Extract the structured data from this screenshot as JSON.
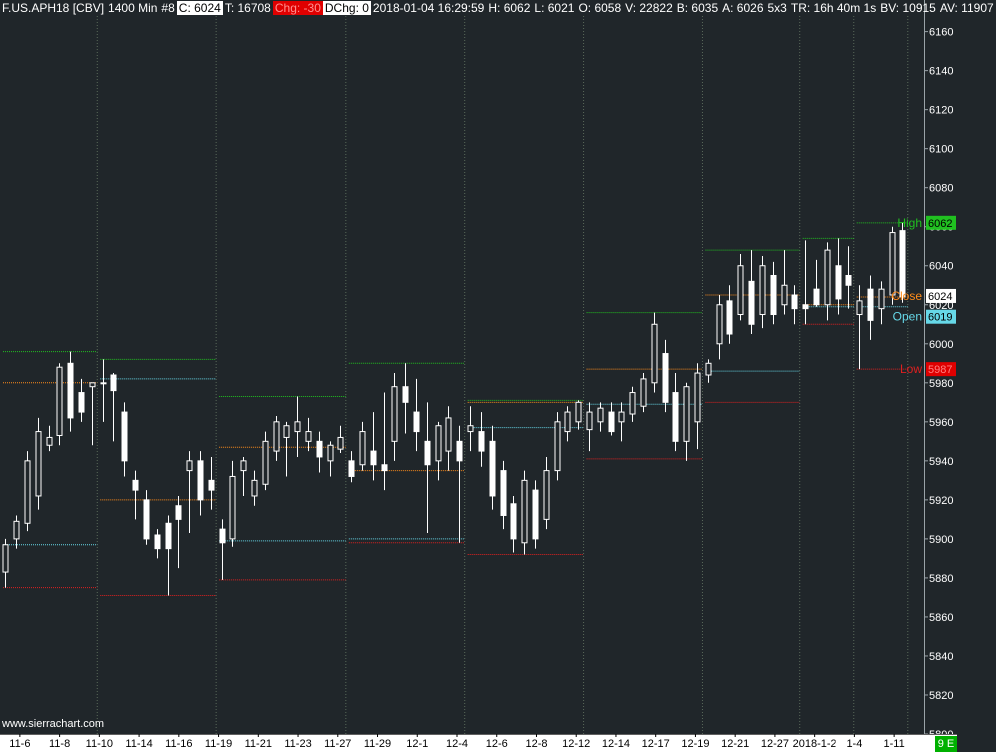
{
  "header": {
    "symbol": "F.US.APH18 [CBV]",
    "timeframe": "1400 Min",
    "chart_number": "#8",
    "close_chip": "C: 6024",
    "trades": "T: 16708",
    "change_chip": "Chg: -30",
    "daily_change_chip": "DChg: 0",
    "datetime": "2018-01-04 16:29:59",
    "high": "H: 6062",
    "low": "L: 6021",
    "open": "O: 6058",
    "volume": "V: 22822",
    "bid": "B: 6035",
    "ask": "A: 6026",
    "size": "5x3",
    "time_remaining": "TR: 16h 40m 1s",
    "bid_volume": "BV: 10915",
    "ask_volume": "AV: 11907"
  },
  "watermark": "www.sierrachart.com",
  "session_badge": "9 E",
  "colors": {
    "background": "#20262a",
    "grid": "#5a6a5a",
    "candle": "#ffffff",
    "high_line": "#20c020",
    "low_line": "#e02020",
    "close_line": "#ff8c1a",
    "open_line": "#66d8e8",
    "axis_text": "#ffffff"
  },
  "chart_data": {
    "type": "candlestick",
    "title": "F.US.APH18 [CBV]",
    "ylim": [
      5800,
      6168
    ],
    "y_ticks": [
      5800,
      5820,
      5840,
      5860,
      5880,
      5900,
      5920,
      5940,
      5960,
      5980,
      6000,
      6020,
      6040,
      6060,
      6080,
      6100,
      6120,
      6140,
      6160
    ],
    "x_labels": [
      "11-6",
      "11-8",
      "11-10",
      "11-14",
      "11-16",
      "11-19",
      "11-21",
      "11-23",
      "11-27",
      "11-29",
      "12-1",
      "12-4",
      "12-6",
      "12-8",
      "12-12",
      "12-14",
      "12-17",
      "12-19",
      "12-21",
      "12-27",
      "2018-1-2",
      "1-4",
      "1-11"
    ],
    "weeks": [
      {
        "high": 5996,
        "low": 5875,
        "open": 5897,
        "close": 5980,
        "candles": [
          [
            5900,
            5875,
            5883,
            5897
          ],
          [
            5912,
            5895,
            5900,
            5909
          ],
          [
            5945,
            5904,
            5908,
            5940
          ],
          [
            5962,
            5915,
            5922,
            5955
          ],
          [
            5958,
            5945,
            5948,
            5952
          ],
          [
            5990,
            5948,
            5953,
            5988
          ],
          [
            5996,
            5955,
            5990,
            5962
          ],
          [
            5982,
            5960,
            5975,
            5965
          ],
          [
            5980,
            5948,
            5978,
            5980
          ]
        ]
      },
      {
        "high": 5992,
        "low": 5871,
        "open": 5982,
        "close": 5920,
        "candles": [
          [
            5992,
            5960,
            5980,
            5980
          ],
          [
            5985,
            5950,
            5984,
            5976
          ],
          [
            5970,
            5932,
            5965,
            5940
          ],
          [
            5935,
            5910,
            5930,
            5925
          ],
          [
            5925,
            5897,
            5920,
            5900
          ],
          [
            5905,
            5890,
            5902,
            5895
          ],
          [
            5912,
            5871,
            5908,
            5895
          ],
          [
            5922,
            5885,
            5917,
            5910
          ],
          [
            5945,
            5903,
            5935,
            5940
          ],
          [
            5945,
            5912,
            5940,
            5920
          ],
          [
            5942,
            5915,
            5930,
            5925
          ]
        ]
      },
      {
        "high": 5973,
        "low": 5879,
        "open": 5899,
        "close": 5947,
        "candles": [
          [
            5910,
            5879,
            5905,
            5898
          ],
          [
            5940,
            5896,
            5900,
            5932
          ],
          [
            5942,
            5922,
            5935,
            5940
          ],
          [
            5935,
            5917,
            5922,
            5930
          ],
          [
            5955,
            5925,
            5928,
            5950
          ],
          [
            5963,
            5940,
            5945,
            5960
          ],
          [
            5960,
            5932,
            5952,
            5958
          ],
          [
            5973,
            5942,
            5955,
            5960
          ],
          [
            5962,
            5945,
            5950,
            5955
          ],
          [
            5955,
            5934,
            5950,
            5942
          ],
          [
            5950,
            5932,
            5940,
            5948
          ],
          [
            5958,
            5944,
            5946,
            5952
          ]
        ]
      },
      {
        "high": 5990,
        "low": 5898,
        "open": 5900,
        "close": 5935,
        "candles": [
          [
            5945,
            5929,
            5940,
            5932
          ],
          [
            5960,
            5935,
            5938,
            5955
          ],
          [
            5965,
            5930,
            5945,
            5938
          ],
          [
            5975,
            5925,
            5938,
            5935
          ],
          [
            5985,
            5940,
            5950,
            5978
          ],
          [
            5990,
            5954,
            5978,
            5970
          ],
          [
            5982,
            5945,
            5965,
            5955
          ],
          [
            5970,
            5903,
            5950,
            5938
          ],
          [
            5960,
            5930,
            5940,
            5958
          ],
          [
            5968,
            5935,
            5945,
            5962
          ],
          [
            5958,
            5898,
            5950,
            5940
          ]
        ]
      },
      {
        "high": 5971,
        "low": 5892,
        "open": 5957,
        "close": 5970,
        "candles": [
          [
            5968,
            5945,
            5955,
            5958
          ],
          [
            5965,
            5937,
            5955,
            5945
          ],
          [
            5958,
            5915,
            5950,
            5922
          ],
          [
            5940,
            5905,
            5935,
            5912
          ],
          [
            5922,
            5893,
            5918,
            5900
          ],
          [
            5935,
            5892,
            5898,
            5930
          ],
          [
            5930,
            5895,
            5925,
            5900
          ],
          [
            5942,
            5905,
            5910,
            5935
          ],
          [
            5965,
            5930,
            5935,
            5960
          ],
          [
            5968,
            5950,
            5955,
            5965
          ],
          [
            5971,
            5956,
            5960,
            5970
          ]
        ]
      },
      {
        "high": 6016,
        "low": 5941,
        "open": 5969,
        "close": 5987,
        "candles": [
          [
            5970,
            5945,
            5956,
            5965
          ],
          [
            5970,
            5955,
            5960,
            5967
          ],
          [
            5970,
            5953,
            5965,
            5955
          ],
          [
            5970,
            5950,
            5960,
            5965
          ],
          [
            5978,
            5960,
            5964,
            5975
          ],
          [
            5985,
            5965,
            5968,
            5982
          ],
          [
            6016,
            5975,
            5980,
            6010
          ],
          [
            6002,
            5965,
            5995,
            5970
          ],
          [
            5985,
            5945,
            5975,
            5950
          ],
          [
            5980,
            5940,
            5950,
            5978
          ],
          [
            5990,
            5946,
            5960,
            5985
          ]
        ]
      },
      {
        "high": 6048,
        "low": 5970,
        "open": 5986,
        "close": 6025,
        "candles": [
          [
            5992,
            5980,
            5984,
            5990
          ],
          [
            6025,
            5992,
            6000,
            6020
          ],
          [
            6030,
            6000,
            6022,
            6005
          ],
          [
            6046,
            6012,
            6015,
            6040
          ],
          [
            6048,
            6005,
            6032,
            6010
          ],
          [
            6045,
            6008,
            6015,
            6040
          ],
          [
            6042,
            6010,
            6035,
            6015
          ],
          [
            6048,
            6015,
            6020,
            6030
          ],
          [
            6030,
            6010,
            6025,
            6018
          ]
        ]
      },
      {
        "high": 6054,
        "low": 6010,
        "open": 6019,
        "close": 6020,
        "candles": [
          [
            6053,
            6010,
            6020,
            6018
          ],
          [
            6043,
            6019,
            6028,
            6020
          ],
          [
            6052,
            6012,
            6020,
            6048
          ],
          [
            6054,
            6015,
            6040,
            6023
          ],
          [
            6050,
            6018,
            6035,
            6030
          ]
        ]
      },
      {
        "high": 6062,
        "low": 5987,
        "open": 6019,
        "close": 6024,
        "candles": [
          [
            6030,
            5987,
            6015,
            6022
          ],
          [
            6035,
            6002,
            6028,
            6012
          ],
          [
            6032,
            6010,
            6018,
            6028
          ],
          [
            6060,
            6020,
            6025,
            6057
          ],
          [
            6062,
            6021,
            6058,
            6024
          ]
        ]
      }
    ],
    "current": {
      "high": 6062,
      "low": 5987,
      "open": 6019,
      "close": 6024
    },
    "line_labels": {
      "high": "High",
      "close": "Close",
      "open": "Open",
      "low": "Low"
    },
    "price_tags": {
      "high": "6062",
      "close": "6024",
      "open": "6019",
      "low": "5987"
    }
  }
}
